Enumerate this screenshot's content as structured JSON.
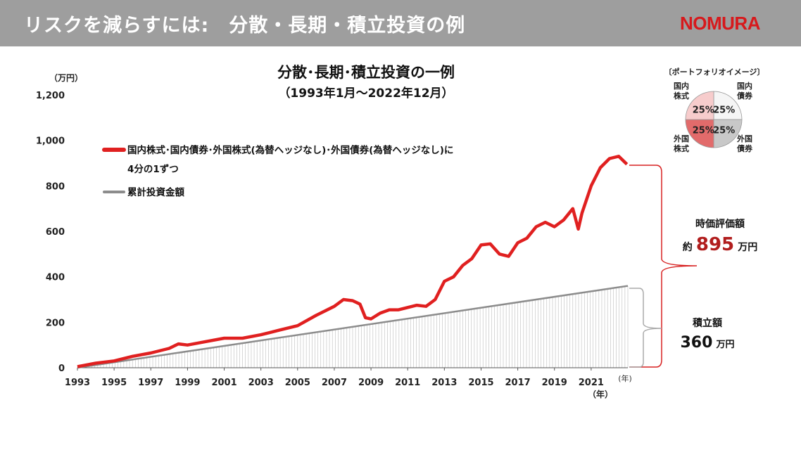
{
  "header": {
    "title": "リスクを減らすには:　分散・長期・積立投資の例",
    "logo": "NOMURA"
  },
  "chart_data": {
    "type": "line",
    "title": "分散･長期･積立投資の一例",
    "subtitle": "（1993年1月～2022年12月）",
    "y_unit": "（万円）",
    "x_unit": "（年）",
    "x_unit_right": "(年)",
    "ylim": [
      0,
      1200
    ],
    "yticks": [
      "0",
      "200",
      "400",
      "600",
      "800",
      "1,000",
      "1,200"
    ],
    "ytick_values": [
      0,
      200,
      400,
      600,
      800,
      1000,
      1200
    ],
    "xlim": [
      1993,
      2023
    ],
    "xticks": [
      "1993",
      "1995",
      "1997",
      "1999",
      "2001",
      "2003",
      "2005",
      "2007",
      "2009",
      "2011",
      "2013",
      "2015",
      "2017",
      "2019",
      "2021"
    ],
    "xtick_values": [
      1993,
      1995,
      1997,
      1999,
      2001,
      2003,
      2005,
      2007,
      2009,
      2011,
      2013,
      2015,
      2017,
      2019,
      2021
    ],
    "grid": false,
    "series": [
      {
        "name": "国内株式･国内債券･外国株式(為替ヘッジなし)･外国債券(為替ヘッジなし)に4分の1ずつ",
        "name_lines": [
          "国内株式･国内債券･外国株式(為替ヘッジなし)･外国債券(為替ヘッジなし)に",
          "4分の1ずつ"
        ],
        "color": "#e02020",
        "x": [
          1993.0,
          1994.0,
          1995.0,
          1996.0,
          1997.0,
          1998.0,
          1998.5,
          1999.0,
          2000.0,
          2001.0,
          2002.0,
          2003.0,
          2004.0,
          2005.0,
          2006.0,
          2007.0,
          2007.5,
          2008.0,
          2008.4,
          2008.7,
          2009.0,
          2009.5,
          2010.0,
          2010.5,
          2011.0,
          2011.5,
          2012.0,
          2012.5,
          2013.0,
          2013.5,
          2014.0,
          2014.5,
          2015.0,
          2015.5,
          2016.0,
          2016.5,
          2017.0,
          2017.5,
          2018.0,
          2018.5,
          2019.0,
          2019.5,
          2020.0,
          2020.3,
          2020.5,
          2021.0,
          2021.5,
          2022.0,
          2022.5,
          2022.95
        ],
        "values": [
          5,
          20,
          30,
          50,
          65,
          85,
          105,
          100,
          115,
          130,
          130,
          145,
          165,
          185,
          230,
          270,
          300,
          295,
          280,
          220,
          215,
          240,
          255,
          255,
          265,
          275,
          270,
          300,
          380,
          400,
          450,
          480,
          540,
          545,
          500,
          490,
          550,
          570,
          620,
          640,
          620,
          650,
          700,
          610,
          680,
          800,
          880,
          920,
          930,
          895
        ]
      },
      {
        "name": "累計投資金額",
        "color": "#8c8c8c",
        "x": [
          1993,
          2023
        ],
        "values": [
          0,
          360
        ]
      }
    ],
    "pie": {
      "title": "〔ポートフォリオイメージ〕",
      "slices": [
        {
          "name": "国内債券",
          "name_lines": [
            "国内",
            "債券"
          ],
          "value": 25,
          "label": "25%",
          "color": "#f5f5f5"
        },
        {
          "name": "外国債券",
          "name_lines": [
            "外国",
            "債券"
          ],
          "value": 25,
          "label": "25%",
          "color": "#c8c8c8"
        },
        {
          "name": "外国株式",
          "name_lines": [
            "外国",
            "株式"
          ],
          "value": 25,
          "label": "25%",
          "color": "#e26b6b"
        },
        {
          "name": "国内株式",
          "name_lines": [
            "国内",
            "株式"
          ],
          "value": 25,
          "label": "25%",
          "color": "#f7cccc"
        }
      ]
    },
    "annotations": {
      "market_value_label": "時価評価額",
      "market_value_prefix": "約",
      "market_value_number": "895",
      "market_value_suffix": "万円",
      "market_value_color": "#b11d1d",
      "invested_label": "積立額",
      "invested_number": "360",
      "invested_suffix": "万円",
      "market_value": 895,
      "invested_value": 360
    }
  }
}
